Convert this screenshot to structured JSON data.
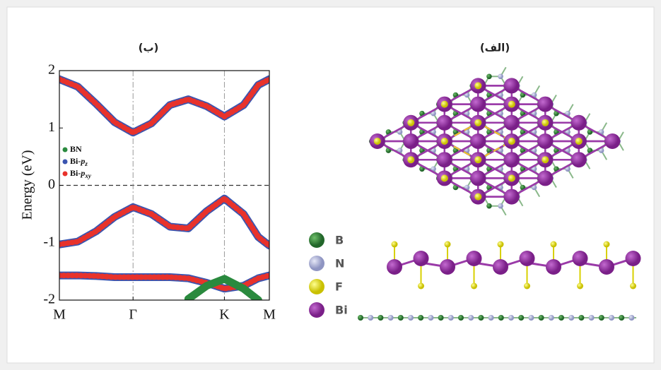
{
  "chart_data": {
    "type": "line",
    "title": "(ب)",
    "y_label": "Energy (eV)",
    "x": [
      0,
      0.25,
      0.5,
      0.75,
      1,
      1.25,
      1.5,
      1.75,
      2,
      2.24,
      2.5,
      2.7,
      2.85
    ],
    "xlim": [
      0,
      2.85
    ],
    "xticks": [
      {
        "value": 0,
        "label": "M"
      },
      {
        "value": 1,
        "label": "Γ"
      },
      {
        "value": 2.24,
        "label": "K"
      },
      {
        "value": 2.85,
        "label": "M"
      }
    ],
    "ylim": [
      -2,
      2
    ],
    "yticks": [
      2,
      1,
      0,
      -1,
      -2
    ],
    "legend": [
      {
        "name": "BN",
        "color": "#2a8a3e"
      },
      {
        "name": "Bi-",
        "italic": "p",
        "sub": "z",
        "color": "#3a55b0"
      },
      {
        "name": "Bi-",
        "italic": "p",
        "sub": "xy",
        "color": "#e8322b"
      }
    ],
    "series": [
      {
        "color": "#e8322b",
        "values": [
          1.85,
          1.72,
          1.42,
          1.1,
          0.92,
          1.08,
          1.4,
          1.5,
          1.38,
          1.2,
          1.4,
          1.75,
          1.85
        ]
      },
      {
        "color": "#e8322b",
        "values": [
          -1.03,
          -0.98,
          -0.8,
          -0.55,
          -0.38,
          -0.5,
          -0.72,
          -0.75,
          -0.45,
          -0.23,
          -0.5,
          -0.9,
          -1.05
        ]
      },
      {
        "color": "#e8322b",
        "values": [
          -1.57,
          -1.57,
          -1.58,
          -1.6,
          -1.6,
          -1.6,
          -1.6,
          -1.62,
          -1.7,
          -1.8,
          -1.75,
          -1.62,
          -1.57
        ]
      },
      {
        "color": "#2a8a3e",
        "values": [
          null,
          null,
          null,
          null,
          null,
          null,
          null,
          -1.98,
          -1.75,
          -1.63,
          -1.8,
          -2.0,
          null
        ]
      }
    ]
  },
  "structure": {
    "title": "(الف)",
    "legend": [
      {
        "name": "B",
        "color": "#2f7d32"
      },
      {
        "name": "N",
        "color": "#aab0d6"
      },
      {
        "name": "F",
        "color": "#e8e020"
      },
      {
        "name": "Bi",
        "color": "#8e2a9a"
      }
    ]
  }
}
